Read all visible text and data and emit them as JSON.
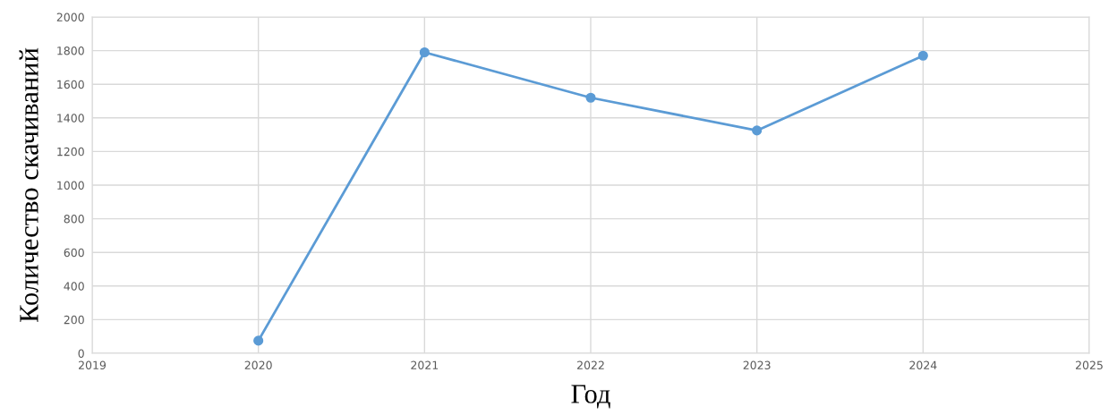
{
  "chart_data": {
    "type": "line",
    "xlabel": "Год",
    "ylabel": "Количество скачиваний",
    "x": [
      2020,
      2021,
      2022,
      2023,
      2024
    ],
    "series": [
      {
        "color": "#5b9bd5",
        "values": [
          75,
          1790,
          1520,
          1325,
          1770
        ]
      }
    ],
    "xlim": [
      2019,
      2025
    ],
    "xticks": [
      2019,
      2020,
      2021,
      2022,
      2023,
      2024,
      2025
    ],
    "ylim": [
      0,
      2000
    ],
    "yticks": [
      0,
      200,
      400,
      600,
      800,
      1000,
      1200,
      1400,
      1600,
      1800,
      2000
    ],
    "grid": true,
    "marker": "circle",
    "line_style": "solid"
  }
}
